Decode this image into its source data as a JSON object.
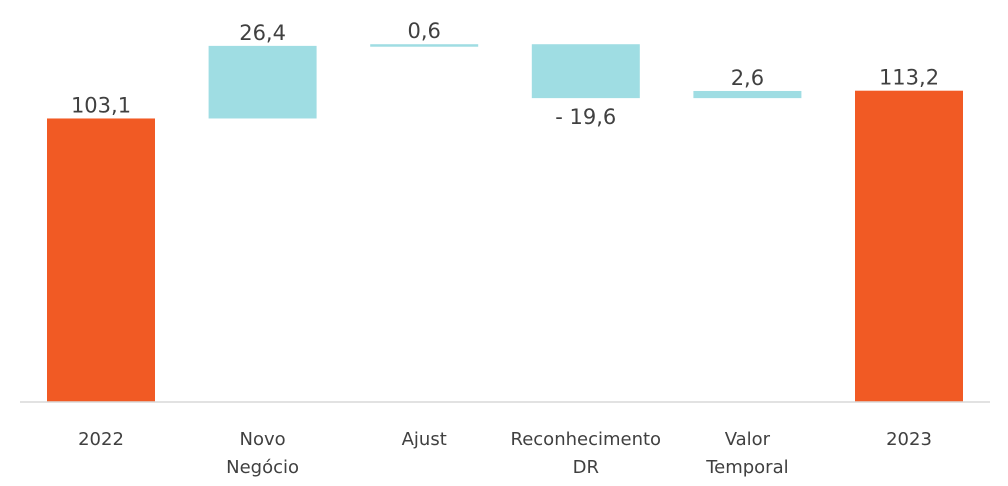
{
  "chart_data": {
    "type": "bar",
    "subtype": "waterfall",
    "categories": [
      "2022",
      "Novo Negócio",
      "Ajust",
      "Reconhecimento DR",
      "Valor Temporal",
      "2023"
    ],
    "category_lines": [
      [
        "2022"
      ],
      [
        "Novo",
        "Negócio"
      ],
      [
        "Ajust"
      ],
      [
        "Reconhecimento",
        "DR"
      ],
      [
        "Valor",
        "Temporal"
      ],
      [
        "2023"
      ]
    ],
    "values": [
      103.1,
      26.4,
      0.6,
      -19.6,
      2.6,
      113.2
    ],
    "measures": [
      "total",
      "relative",
      "relative",
      "relative",
      "relative",
      "total"
    ],
    "data_labels": [
      "103,1",
      "26,4",
      "0,6",
      "- 19,6",
      "2,6",
      "113,2"
    ],
    "title": "",
    "xlabel": "",
    "ylabel": "",
    "ylim": [
      0,
      130
    ],
    "grid": false,
    "legend": "none",
    "colors": {
      "total": "#F15A24",
      "change": "#9FDDE3",
      "axis": "#D9D9D9",
      "text": "#404040"
    }
  }
}
